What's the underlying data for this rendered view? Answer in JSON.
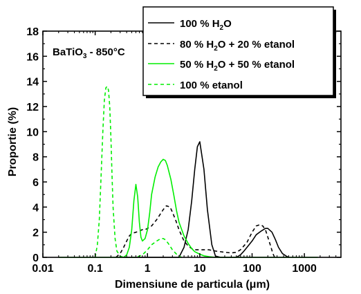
{
  "chart_data": {
    "type": "line",
    "x_scale": "log",
    "xlim": [
      0.01,
      5000
    ],
    "ylim": [
      0,
      18
    ],
    "xlabel_parts": [
      "Dimensiune de particula (",
      "μ",
      "m)"
    ],
    "ylabel": "Proportie (%)",
    "x_tick_labels": [
      "0.01",
      "0.1",
      "1",
      "10",
      "100",
      "1000"
    ],
    "x_tick_values": [
      0.01,
      0.1,
      1,
      10,
      100,
      1000
    ],
    "y_tick_labels": [
      "0",
      "2",
      "4",
      "6",
      "8",
      "10",
      "12",
      "14",
      "16",
      "18"
    ],
    "y_tick_values": [
      0,
      2,
      4,
      6,
      8,
      10,
      12,
      14,
      16,
      18
    ],
    "grid": false,
    "legend_position": "top-right",
    "annotation": {
      "base": "BaTiO",
      "sub": "3",
      "rest": " - 850°C"
    },
    "series": [
      {
        "name": "100 % H2O",
        "legend_parts": [
          "100 % H",
          "2",
          "O"
        ],
        "color": "#000000",
        "dash": "solid",
        "x": [
          0.35,
          0.42,
          0.5,
          0.6,
          0.7,
          0.8,
          0.9,
          1.0,
          1.2,
          1.5,
          2.0,
          2.5,
          3.0,
          4.0,
          5.0,
          6.0,
          7.0,
          8.0,
          9.0,
          10.0,
          12.0,
          14.0,
          17.0,
          20.0,
          25.0,
          30.0,
          40.0,
          50.0,
          60.0,
          70.0,
          80.0,
          100.0,
          120.0,
          150.0,
          180.0,
          200.0,
          240.0,
          280.0,
          320.0,
          380.0,
          450.0,
          500.0
        ],
        "y": [
          0,
          0,
          0,
          0,
          0,
          0,
          0,
          0,
          0,
          0,
          0,
          0,
          0,
          0,
          0.8,
          2.2,
          4.5,
          7.0,
          8.8,
          9.2,
          7.0,
          3.8,
          1.0,
          0.1,
          0,
          0,
          0,
          0,
          0.2,
          0.5,
          0.8,
          1.3,
          1.8,
          2.1,
          2.3,
          2.3,
          2.0,
          1.4,
          0.8,
          0.3,
          0.1,
          0
        ]
      },
      {
        "name": "80 % H2O + 20 % etanol",
        "legend_parts": [
          "80 % H",
          "2",
          "O + 20 % etanol"
        ],
        "color": "#000000",
        "dash": "dash",
        "x": [
          0.25,
          0.3,
          0.35,
          0.4,
          0.45,
          0.5,
          0.6,
          0.7,
          0.8,
          0.9,
          1.0,
          1.2,
          1.5,
          2.0,
          2.3,
          2.7,
          3.0,
          3.5,
          4.0,
          5.0,
          6.0,
          7.0,
          8.0,
          10.0,
          12.0,
          15.0,
          20.0,
          30.0,
          40.0,
          50.0,
          60.0,
          80.0,
          100.0,
          120.0,
          140.0,
          160.0,
          180.0,
          200.0,
          230.0,
          250.0,
          270.0
        ],
        "y": [
          0,
          0.3,
          0.8,
          1.3,
          1.7,
          1.9,
          2.0,
          2.1,
          2.2,
          2.2,
          2.3,
          2.5,
          3.0,
          3.8,
          4.1,
          4.0,
          3.6,
          2.9,
          2.2,
          1.3,
          0.9,
          0.7,
          0.6,
          0.6,
          0.6,
          0.6,
          0.5,
          0.4,
          0.35,
          0.4,
          0.6,
          1.2,
          2.0,
          2.5,
          2.6,
          2.5,
          2.2,
          1.6,
          0.8,
          0.3,
          0
        ]
      },
      {
        "name": "50 % H2O + 50 % etanol",
        "legend_parts": [
          "50 % H",
          "2",
          "O + 50 % etanol"
        ],
        "color": "#00ee00",
        "dash": "solid",
        "x": [
          0.02,
          0.05,
          0.1,
          0.2,
          0.35,
          0.4,
          0.45,
          0.5,
          0.55,
          0.6,
          0.65,
          0.7,
          0.75,
          0.8,
          0.9,
          1.0,
          1.1,
          1.2,
          1.4,
          1.6,
          1.8,
          2.0,
          2.2,
          2.4,
          2.8,
          3.2,
          3.6,
          4.0,
          5.0,
          6.0,
          7.0,
          8.0,
          10.0,
          12.0,
          15.0,
          20.0,
          30.0,
          100.0,
          500.0,
          1800.0
        ],
        "y": [
          0,
          0,
          0,
          0,
          0,
          0.2,
          0.8,
          2.2,
          4.5,
          5.8,
          4.8,
          2.8,
          1.6,
          1.3,
          1.5,
          2.2,
          3.5,
          5.0,
          6.4,
          7.2,
          7.6,
          7.8,
          7.7,
          7.3,
          6.2,
          4.9,
          3.7,
          2.8,
          1.7,
          1.1,
          0.7,
          0.45,
          0.25,
          0.12,
          0.05,
          0,
          0,
          0,
          0,
          0
        ]
      },
      {
        "name": "100 % etanol",
        "legend_parts": [
          "100 % etanol"
        ],
        "color": "#00ee00",
        "dash": "dash",
        "x": [
          0.1,
          0.11,
          0.12,
          0.13,
          0.14,
          0.15,
          0.16,
          0.17,
          0.18,
          0.19,
          0.2,
          0.21,
          0.22,
          0.24,
          0.26,
          0.3,
          0.35,
          0.4,
          0.5,
          0.6,
          0.8,
          1.0,
          1.2,
          1.5,
          1.8,
          2.0,
          2.2,
          2.5,
          3.0,
          3.5,
          4.0,
          4.5
        ],
        "y": [
          0,
          1.0,
          3.0,
          6.5,
          10.0,
          12.5,
          13.5,
          13.6,
          13.3,
          12.0,
          9.5,
          6.5,
          4.0,
          1.5,
          0.5,
          0.1,
          0,
          0,
          0,
          0,
          0.2,
          0.6,
          1.0,
          1.3,
          1.5,
          1.5,
          1.4,
          1.1,
          0.6,
          0.3,
          0.1,
          0
        ]
      }
    ]
  }
}
